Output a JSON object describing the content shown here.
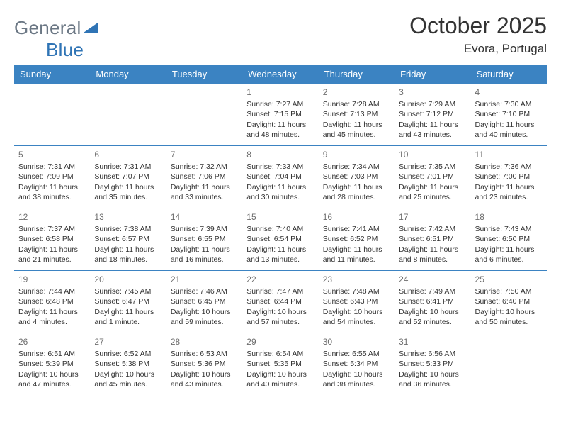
{
  "brand": {
    "part1": "General",
    "part2": "Blue"
  },
  "title": "October 2025",
  "location": "Evora, Portugal",
  "colors": {
    "header_bg": "#3b83c2",
    "header_text": "#ffffff",
    "border": "#3b83c2",
    "daynum": "#6e6e6e",
    "body_text": "#333333",
    "brand_gray": "#6b7784",
    "brand_blue": "#2f74b5"
  },
  "weekdays": [
    "Sunday",
    "Monday",
    "Tuesday",
    "Wednesday",
    "Thursday",
    "Friday",
    "Saturday"
  ],
  "weeks": [
    [
      {
        "day": "",
        "sunrise": "",
        "sunset": "",
        "daylight": ""
      },
      {
        "day": "",
        "sunrise": "",
        "sunset": "",
        "daylight": ""
      },
      {
        "day": "",
        "sunrise": "",
        "sunset": "",
        "daylight": ""
      },
      {
        "day": "1",
        "sunrise": "Sunrise: 7:27 AM",
        "sunset": "Sunset: 7:15 PM",
        "daylight": "Daylight: 11 hours and 48 minutes."
      },
      {
        "day": "2",
        "sunrise": "Sunrise: 7:28 AM",
        "sunset": "Sunset: 7:13 PM",
        "daylight": "Daylight: 11 hours and 45 minutes."
      },
      {
        "day": "3",
        "sunrise": "Sunrise: 7:29 AM",
        "sunset": "Sunset: 7:12 PM",
        "daylight": "Daylight: 11 hours and 43 minutes."
      },
      {
        "day": "4",
        "sunrise": "Sunrise: 7:30 AM",
        "sunset": "Sunset: 7:10 PM",
        "daylight": "Daylight: 11 hours and 40 minutes."
      }
    ],
    [
      {
        "day": "5",
        "sunrise": "Sunrise: 7:31 AM",
        "sunset": "Sunset: 7:09 PM",
        "daylight": "Daylight: 11 hours and 38 minutes."
      },
      {
        "day": "6",
        "sunrise": "Sunrise: 7:31 AM",
        "sunset": "Sunset: 7:07 PM",
        "daylight": "Daylight: 11 hours and 35 minutes."
      },
      {
        "day": "7",
        "sunrise": "Sunrise: 7:32 AM",
        "sunset": "Sunset: 7:06 PM",
        "daylight": "Daylight: 11 hours and 33 minutes."
      },
      {
        "day": "8",
        "sunrise": "Sunrise: 7:33 AM",
        "sunset": "Sunset: 7:04 PM",
        "daylight": "Daylight: 11 hours and 30 minutes."
      },
      {
        "day": "9",
        "sunrise": "Sunrise: 7:34 AM",
        "sunset": "Sunset: 7:03 PM",
        "daylight": "Daylight: 11 hours and 28 minutes."
      },
      {
        "day": "10",
        "sunrise": "Sunrise: 7:35 AM",
        "sunset": "Sunset: 7:01 PM",
        "daylight": "Daylight: 11 hours and 25 minutes."
      },
      {
        "day": "11",
        "sunrise": "Sunrise: 7:36 AM",
        "sunset": "Sunset: 7:00 PM",
        "daylight": "Daylight: 11 hours and 23 minutes."
      }
    ],
    [
      {
        "day": "12",
        "sunrise": "Sunrise: 7:37 AM",
        "sunset": "Sunset: 6:58 PM",
        "daylight": "Daylight: 11 hours and 21 minutes."
      },
      {
        "day": "13",
        "sunrise": "Sunrise: 7:38 AM",
        "sunset": "Sunset: 6:57 PM",
        "daylight": "Daylight: 11 hours and 18 minutes."
      },
      {
        "day": "14",
        "sunrise": "Sunrise: 7:39 AM",
        "sunset": "Sunset: 6:55 PM",
        "daylight": "Daylight: 11 hours and 16 minutes."
      },
      {
        "day": "15",
        "sunrise": "Sunrise: 7:40 AM",
        "sunset": "Sunset: 6:54 PM",
        "daylight": "Daylight: 11 hours and 13 minutes."
      },
      {
        "day": "16",
        "sunrise": "Sunrise: 7:41 AM",
        "sunset": "Sunset: 6:52 PM",
        "daylight": "Daylight: 11 hours and 11 minutes."
      },
      {
        "day": "17",
        "sunrise": "Sunrise: 7:42 AM",
        "sunset": "Sunset: 6:51 PM",
        "daylight": "Daylight: 11 hours and 8 minutes."
      },
      {
        "day": "18",
        "sunrise": "Sunrise: 7:43 AM",
        "sunset": "Sunset: 6:50 PM",
        "daylight": "Daylight: 11 hours and 6 minutes."
      }
    ],
    [
      {
        "day": "19",
        "sunrise": "Sunrise: 7:44 AM",
        "sunset": "Sunset: 6:48 PM",
        "daylight": "Daylight: 11 hours and 4 minutes."
      },
      {
        "day": "20",
        "sunrise": "Sunrise: 7:45 AM",
        "sunset": "Sunset: 6:47 PM",
        "daylight": "Daylight: 11 hours and 1 minute."
      },
      {
        "day": "21",
        "sunrise": "Sunrise: 7:46 AM",
        "sunset": "Sunset: 6:45 PM",
        "daylight": "Daylight: 10 hours and 59 minutes."
      },
      {
        "day": "22",
        "sunrise": "Sunrise: 7:47 AM",
        "sunset": "Sunset: 6:44 PM",
        "daylight": "Daylight: 10 hours and 57 minutes."
      },
      {
        "day": "23",
        "sunrise": "Sunrise: 7:48 AM",
        "sunset": "Sunset: 6:43 PM",
        "daylight": "Daylight: 10 hours and 54 minutes."
      },
      {
        "day": "24",
        "sunrise": "Sunrise: 7:49 AM",
        "sunset": "Sunset: 6:41 PM",
        "daylight": "Daylight: 10 hours and 52 minutes."
      },
      {
        "day": "25",
        "sunrise": "Sunrise: 7:50 AM",
        "sunset": "Sunset: 6:40 PM",
        "daylight": "Daylight: 10 hours and 50 minutes."
      }
    ],
    [
      {
        "day": "26",
        "sunrise": "Sunrise: 6:51 AM",
        "sunset": "Sunset: 5:39 PM",
        "daylight": "Daylight: 10 hours and 47 minutes."
      },
      {
        "day": "27",
        "sunrise": "Sunrise: 6:52 AM",
        "sunset": "Sunset: 5:38 PM",
        "daylight": "Daylight: 10 hours and 45 minutes."
      },
      {
        "day": "28",
        "sunrise": "Sunrise: 6:53 AM",
        "sunset": "Sunset: 5:36 PM",
        "daylight": "Daylight: 10 hours and 43 minutes."
      },
      {
        "day": "29",
        "sunrise": "Sunrise: 6:54 AM",
        "sunset": "Sunset: 5:35 PM",
        "daylight": "Daylight: 10 hours and 40 minutes."
      },
      {
        "day": "30",
        "sunrise": "Sunrise: 6:55 AM",
        "sunset": "Sunset: 5:34 PM",
        "daylight": "Daylight: 10 hours and 38 minutes."
      },
      {
        "day": "31",
        "sunrise": "Sunrise: 6:56 AM",
        "sunset": "Sunset: 5:33 PM",
        "daylight": "Daylight: 10 hours and 36 minutes."
      },
      {
        "day": "",
        "sunrise": "",
        "sunset": "",
        "daylight": ""
      }
    ]
  ]
}
